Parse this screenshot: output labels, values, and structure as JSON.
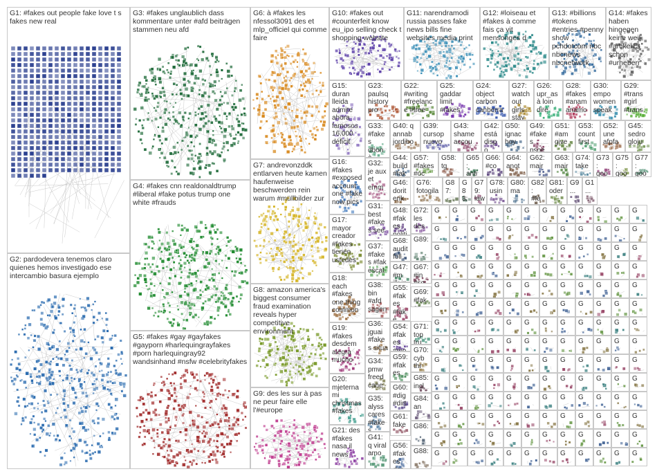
{
  "groups": [
    {
      "id": "G1",
      "label": "G1: #fakes out people fake love t s fakes new real",
      "color": "#2a3f8f"
    },
    {
      "id": "G2",
      "label": "G2: pardodevera tenemos claro quienes hemos investigado ese intercambio basura ejemplo",
      "color": "#2b6cb0"
    },
    {
      "id": "G3",
      "label": "G3: #fakes unglaublich dass kommentare unter #afd beiträgen stammen neu afd",
      "color": "#1f6b3a"
    },
    {
      "id": "G4",
      "label": "G4: #fakes cnn realdonaldtrump #liberal #fake potus trump one white #frauds",
      "color": "#1e8a2e"
    },
    {
      "id": "G5",
      "label": "G5: #fakes #gay #gayfakes #gayporn #harlequingrayfakes #porn harlequingray92 wandsinhand #nsfw #celebrityfakes",
      "color": "#a12a2a"
    },
    {
      "id": "G6",
      "label": "G6: à #fakes les nfessol3091 des et mlp_officiel qui comme faire",
      "color": "#d98a1f"
    },
    {
      "id": "G7",
      "label": "G7: andrevonzddk entlarven heute kamen haufenweise beschwerden rein warum #müllbilder zur",
      "color": "#d4b21d"
    },
    {
      "id": "G8",
      "label": "G8: amazon america's biggest consumer fraud examination reveals hyper competitive environment",
      "color": "#7a9a2a"
    },
    {
      "id": "G9",
      "label": "G9: des les sur à pas ne peur faire elle l'#europe",
      "color": "#c03c8f"
    },
    {
      "id": "G10",
      "label": "G10: #fakes out #counterfeit know eu_ipo selling check t shopping website",
      "color": "#5b3ea8"
    },
    {
      "id": "G11",
      "label": "G11: narendramodi russia passes fake news bills fine websites media print",
      "color": "#3a8fb7"
    },
    {
      "id": "G12",
      "label": "G12: #loiseau et #fakes à comme fais ça vit mensonges d",
      "color": "#2c8a8a"
    },
    {
      "id": "G13",
      "label": "G13: #billions #tokens #entries #penny show pchdotcom nbc nbcnews nbcnetwork",
      "color": "#3a6fa0"
    },
    {
      "id": "G14",
      "label": "G14: #fakes haben hingegen keine weil #artikel13 schon #urheberr",
      "color": "#6a6a6a"
    },
    {
      "id": "G15",
      "label": "G15: duran lleida admite ahora famosos 16.000 déficit",
      "color": "#8a6fbf"
    },
    {
      "id": "G16",
      "label": "G16: #fakes #exposed account one #fake now pics",
      "color": "#4a7fc0"
    },
    {
      "id": "G17",
      "label": "G17: mayor creador #fakes tienen ustedes",
      "color": "#7f8f3a"
    },
    {
      "id": "G18",
      "label": "G18: each #fakes one thing common",
      "color": "#9a6a3a"
    },
    {
      "id": "G19",
      "label": "G19: #fakes desdem alegra mucho",
      "color": "#a03a7a"
    },
    {
      "id": "G20",
      "label": "G20: mjeterna mi christmas #fakes",
      "color": "#3a9a8a"
    },
    {
      "id": "G21",
      "label": "G21: des #fakes nasa il news",
      "color": "#8a3aa0"
    },
    {
      "id": "G22",
      "label": "G22: #writing #freelance #free",
      "color": "#5a8a3a"
    },
    {
      "id": "G23",
      "label": "G23: paulsq history pro",
      "color": "#b05a3a"
    },
    {
      "id": "G24",
      "label": "G24: object carbon canberra",
      "color": "#3a5ab0"
    },
    {
      "id": "G25",
      "label": "G25: gaddar limit #fakes",
      "color": "#7a3ab0"
    },
    {
      "id": "G26",
      "label": "G26: upr_as à loin dire",
      "color": "#3ab07a"
    },
    {
      "id": "G27",
      "label": "G27: watch out girls stay",
      "color": "#b0903a"
    },
    {
      "id": "G28",
      "label": "G28: #fakes #anam anamo",
      "color": "#b03a5a"
    },
    {
      "id": "G29",
      "label": "G29: #trans #girl #trans",
      "color": "#5ab03a"
    },
    {
      "id": "G30",
      "label": "G30: empo women speak",
      "color": "#3a90b0"
    },
    {
      "id": "G31",
      "label": "G31: best #fakes see",
      "color": "#906ab0"
    },
    {
      "id": "G32",
      "label": "G32: je aux et emm",
      "color": "#b06a90"
    },
    {
      "id": "G33",
      "label": "G33: #fakes dbon à",
      "color": "#6ab090"
    },
    {
      "id": "G34",
      "label": "G34: pmw freed cane",
      "color": "#90906a"
    },
    {
      "id": "G35",
      "label": "G35: alyss cares #fakes",
      "color": "#6a90b0"
    },
    {
      "id": "G36",
      "label": "G36: jguai #fakes situa",
      "color": "#b0906a"
    },
    {
      "id": "G37",
      "label": "G37: #fakes #fak escat",
      "color": "#6ab06a"
    },
    {
      "id": "G38",
      "label": "G38: bin #afd sagen",
      "color": "#b06a6a"
    },
    {
      "id": "G39",
      "label": "G39: cursop nuevo",
      "color": "#6a6ab0"
    },
    {
      "id": "G40",
      "label": "G40: q annab jordibo",
      "color": "#9a7a5a"
    },
    {
      "id": "G41",
      "label": "G41: q viral amo",
      "color": "#5a9a7a"
    },
    {
      "id": "G42",
      "label": "G42: está dispo",
      "color": "#7a5a9a"
    },
    {
      "id": "G43",
      "label": "G43: shame accou",
      "color": "#9a5a7a"
    },
    {
      "id": "G44",
      "label": "G44: build #fakes",
      "color": "#5a7a9a"
    },
    {
      "id": "G45",
      "label": "G45: sedro gloju",
      "color": "#7a9a5a"
    },
    {
      "id": "G46",
      "label": "G46: dorit erik",
      "color": "#8a6a4a"
    },
    {
      "id": "G47",
      "label": "G47: #m ilk in",
      "color": "#4a8a6a"
    },
    {
      "id": "G48",
      "label": "G48: #fakes politi",
      "color": "#6a4a8a"
    },
    {
      "id": "G49",
      "label": "G49: #fakes psoe",
      "color": "#8a4a6a"
    },
    {
      "id": "G50",
      "label": "G50: ignac hoy",
      "color": "#4a6a8a"
    },
    {
      "id": "G51",
      "label": "G51: #am give",
      "color": "#6a8a4a"
    },
    {
      "id": "G52",
      "label": "G52: une afpfa",
      "color": "#a07050"
    },
    {
      "id": "G53",
      "label": "G53: count first",
      "color": "#50a070"
    },
    {
      "id": "G54",
      "label": "G54: #fakes #mo trump",
      "color": "#7050a0"
    },
    {
      "id": "G55",
      "label": "G55: #fakes #fake #pa",
      "color": "#a05070"
    },
    {
      "id": "G56",
      "label": "G56: #fakes des",
      "color": "#5070a0"
    },
    {
      "id": "G57",
      "label": "G57: #fakes #oc",
      "color": "#70a050"
    },
    {
      "id": "G58",
      "label": "G58: tg",
      "color": "#906050"
    },
    {
      "id": "G59",
      "label": "G59: #fakes",
      "color": "#509060"
    },
    {
      "id": "G60",
      "label": "G60: #dig #dirt",
      "color": "#605090"
    },
    {
      "id": "G61",
      "label": "G61: fake",
      "color": "#905060"
    },
    {
      "id": "G62",
      "label": "G62: mair",
      "color": "#506090"
    },
    {
      "id": "G63",
      "label": "G63: mair",
      "color": "#609050"
    },
    {
      "id": "G64",
      "label": "G64: anot",
      "color": "#80604a"
    },
    {
      "id": "G65",
      "label": "G65: anti",
      "color": "#4a8060"
    },
    {
      "id": "G66",
      "label": "G66: #co",
      "color": "#604a80"
    },
    {
      "id": "G67",
      "label": "G67: #in #so",
      "color": "#804a60"
    },
    {
      "id": "G68",
      "label": "G68: audit foll",
      "color": "#4a6080"
    },
    {
      "id": "G69",
      "label": "G69: #fakes",
      "color": "#60804a"
    },
    {
      "id": "G70",
      "label": "G70: cyb thr",
      "color": "#a08a5a"
    },
    {
      "id": "G71",
      "label": "G71: top tru",
      "color": "#5aa08a"
    },
    {
      "id": "G72",
      "label": "G72: les des",
      "color": "#8a5aa0"
    },
    {
      "id": "G73",
      "label": "G73: goo",
      "color": "#a05a8a"
    },
    {
      "id": "G74",
      "label": "G74: take",
      "color": "#5a8aa0"
    },
    {
      "id": "G75",
      "label": "G75: goo",
      "color": "#8aa05a"
    },
    {
      "id": "G76",
      "label": "G76: fotogila",
      "color": "#9a8060"
    },
    {
      "id": "G77",
      "label": "G77: goo",
      "color": "#609a80"
    },
    {
      "id": "G78",
      "label": "G78: usin",
      "color": "#80609a"
    },
    {
      "id": "G79",
      "label": "G79: law",
      "color": "#9a6080"
    },
    {
      "id": "G80",
      "label": "G80: ma",
      "color": "#60809a"
    },
    {
      "id": "G81",
      "label": "G81: oder",
      "color": "#809a60"
    },
    {
      "id": "G82",
      "label": "G82: #fa",
      "color": "#7a6a5a"
    },
    {
      "id": "G83",
      "label": "G83:",
      "color": "#5a7a6a"
    },
    {
      "id": "G84",
      "label": "G84: an",
      "color": "#6a5a7a"
    },
    {
      "id": "G85",
      "label": "G85: incl",
      "color": "#7a5a6a"
    },
    {
      "id": "G86",
      "label": "G86:",
      "color": "#5a6a7a"
    },
    {
      "id": "G87",
      "label": "G87:",
      "color": "#6a7a5a"
    },
    {
      "id": "G88",
      "label": "G88:",
      "color": "#8a7a6a"
    },
    {
      "id": "G89",
      "label": "G89:",
      "color": "#6a8a7a"
    },
    {
      "id": "G90",
      "label": "G9...",
      "color": "#7a6a8a"
    },
    {
      "id": "G91",
      "label": "G1...",
      "color": "#8a6a7a"
    }
  ],
  "filler_label": "G"
}
